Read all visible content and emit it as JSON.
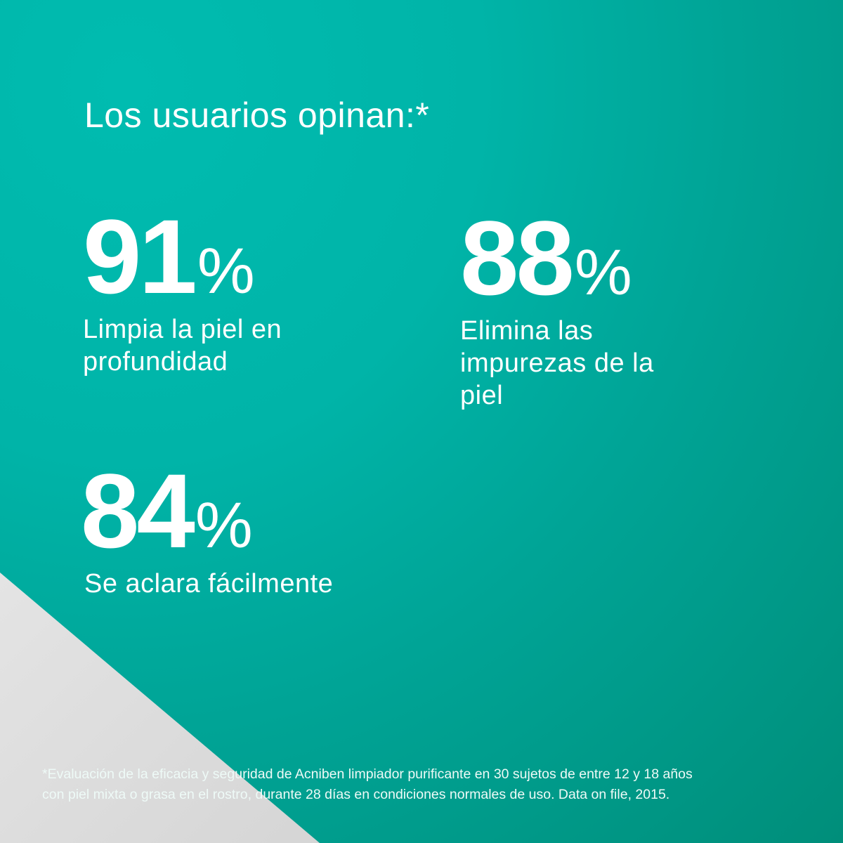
{
  "title": "Los usuarios opinan:*",
  "stats": [
    {
      "value": "91",
      "unit": "%",
      "label_lines": [
        "Limpia la piel en",
        "profundidad"
      ]
    },
    {
      "value": "88",
      "unit": "%",
      "label_lines": [
        "Elimina las",
        "impurezas de la",
        "piel"
      ]
    },
    {
      "value": "84",
      "unit": "%",
      "label_lines": [
        "Se aclara fácilmente"
      ]
    }
  ],
  "footnote_lines": [
    "*Evaluación de la eficacia y seguridad de Acniben limpiador purificante en 30 sujetos de entre 12 y 18 años",
    "con piel mixta o grasa en el rostro, durante 28 días en condiciones normales de uso. Data on file, 2015."
  ],
  "colors": {
    "background": "#00b4a8",
    "background_dark": "#008e7a",
    "accent_triangle": "#d9d9d9",
    "text": "#ffffff"
  }
}
